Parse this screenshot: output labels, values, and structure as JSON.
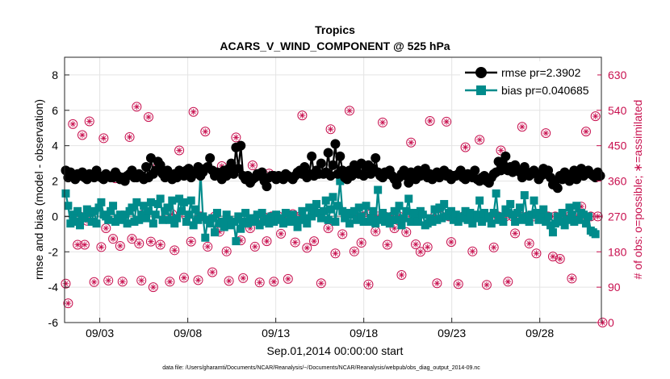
{
  "chart_data": {
    "type": "line",
    "title": "Tropics",
    "subtitle": "ACARS_V_WIND_COMPONENT @ 525 hPa",
    "xlabel": "Sep.01,2014 00:00:00 start",
    "ylabel": "rmse and bias (model - observation)",
    "ylabel_right": "# of obs: o=possible; ∗=assimilated",
    "footnote": "data file: /Users/gharamti/Documents/NCAR/Reanalysis/~/Documents/NCAR/Reanalysis/webpub/obs_diag_output_2014-09.nc",
    "xlim": [
      1,
      31.5
    ],
    "ylim": [
      -6,
      9
    ],
    "ylim_right": [
      0,
      675
    ],
    "x_ticks": [
      3,
      8,
      13,
      18,
      23,
      28
    ],
    "x_tick_labels": [
      "09/03",
      "09/08",
      "09/13",
      "09/18",
      "09/23",
      "09/28"
    ],
    "y_ticks": [
      -6,
      -4,
      -2,
      0,
      2,
      4,
      6,
      8
    ],
    "y_tick_labels": [
      "-6",
      "-4",
      "-2",
      "0",
      "2",
      "4",
      "6",
      "8"
    ],
    "y_ticks_right": [
      0,
      90,
      180,
      270,
      360,
      450,
      540,
      630
    ],
    "y_tick_labels_right": [
      "0",
      "90",
      "180",
      "270",
      "360",
      "450",
      "540",
      "630"
    ],
    "grid": true,
    "legend_position": "top-right",
    "colors": {
      "rmse": "#000000",
      "bias": "#008b8b",
      "obs": "#c8104f",
      "zero_line": "#9a9a9a",
      "grid": "#e4e4e4",
      "axis": "#262626"
    },
    "series": [
      {
        "name": "rmse pr=2.3902",
        "color": "#000000",
        "marker": "circle",
        "values": [
          2.6,
          2.2,
          2.5,
          2.3,
          2.1,
          2.4,
          2.3,
          2.5,
          2.2,
          2.1,
          2.4,
          2.3,
          2.2,
          2.6,
          2.3,
          2.2,
          2.1,
          2.4,
          2.3,
          2.2,
          2.2,
          2.5,
          2.3,
          2.1,
          2.2,
          2.0,
          2.3,
          2.4,
          2.6,
          2.2,
          2.2,
          2.4,
          2.3,
          2.1,
          2.8,
          2.2,
          3.3,
          2.4,
          2.6,
          3.1,
          2.9,
          2.4,
          2.2,
          2.6,
          2.3,
          2.1,
          2.4,
          2.2,
          2.6,
          2.4,
          2.3,
          2.6,
          2.7,
          2.2,
          2.4,
          2.5,
          2.8,
          2.3,
          2.5,
          2.7,
          2.8,
          3.3,
          2.6,
          2.3,
          2.5,
          2.4,
          2.1,
          2.6,
          2.3,
          2.7,
          3.0,
          2.4,
          3.9,
          2.7,
          4.0,
          2.3,
          2.1,
          2.3,
          1.9,
          2.1,
          2.2,
          2.4,
          2.3,
          2.5,
          2.0,
          1.7,
          2.2,
          2.3,
          2.3,
          2.1,
          2.3,
          2.2,
          2.1,
          2.4,
          2.3,
          2.2,
          2.1,
          2.3,
          2.5,
          2.6,
          2.4,
          2.8,
          2.2,
          2.4,
          3.4,
          2.3,
          2.6,
          2.4,
          3.0,
          2.4,
          2.5,
          3.6,
          2.3,
          2.9,
          4.1,
          2.4,
          3.4,
          2.6,
          2.2,
          2.1,
          2.6,
          2.3,
          2.9,
          2.6,
          2.4,
          3.0,
          2.3,
          2.8,
          2.9,
          2.4,
          2.7,
          3.3,
          2.5,
          2.3,
          2.2,
          2.5,
          2.4,
          2.6,
          2.3,
          2.1,
          1.8,
          2.2,
          2.4,
          2.6,
          2.3,
          1.9,
          2.5,
          2.3,
          2.1,
          2.6,
          2.3,
          2.4,
          2.7,
          2.2,
          2.4,
          2.1,
          2.3,
          2.5,
          2.2,
          2.4,
          2.6,
          2.3,
          2.4,
          2.1,
          2.3,
          2.3,
          2.4,
          2.6,
          2.2,
          2.1,
          2.4,
          2.3,
          2.2,
          2.6,
          2.1,
          2.0,
          2.2,
          2.3,
          2.0,
          1.9,
          2.2,
          2.4,
          2.5,
          3.1,
          2.6,
          2.9,
          3.4,
          2.6,
          2.8,
          2.5,
          2.9,
          2.6,
          2.5,
          2.2,
          2.8,
          2.4,
          2.3,
          2.5,
          2.6,
          2.4,
          2.1,
          2.3,
          2.7,
          2.4,
          2.6,
          2.2,
          1.8,
          2.0,
          1.6,
          2.3,
          2.1,
          2.5,
          2.3,
          2.0,
          2.4,
          2.6,
          2.1,
          2.4,
          2.7,
          2.3,
          2.5,
          2.6,
          2.4,
          2.3,
          2.2,
          2.5,
          2.3
        ]
      },
      {
        "name": "bias pr=0.040685",
        "color": "#008b8b",
        "marker": "square",
        "values": [
          1.3,
          0.6,
          -0.4,
          0.1,
          -0.3,
          0.3,
          -0.5,
          0.0,
          -0.1,
          0.4,
          0.2,
          -0.3,
          0.3,
          -0.4,
          0.5,
          0.8,
          0.1,
          0.0,
          -0.2,
          0.3,
          0.6,
          -0.3,
          -0.1,
          0.1,
          -0.2,
          0.1,
          -0.4,
          0.3,
          0.5,
          -0.3,
          0.8,
          -0.2,
          0.1,
          0.6,
          -0.1,
          0.3,
          0.8,
          -0.4,
          0.1,
          0.7,
          1.0,
          -0.2,
          0.3,
          0.5,
          -0.2,
          0.9,
          -0.4,
          -0.1,
          1.0,
          0.3,
          0.8,
          -0.3,
          0.1,
          0.9,
          -0.5,
          0.4,
          -0.2,
          2.5,
          0.0,
          -1.2,
          -0.2,
          -0.4,
          -0.1,
          -0.9,
          0.2,
          -0.4,
          -0.3,
          -0.6,
          0.1,
          -0.2,
          -0.5,
          -0.3,
          -1.4,
          0.0,
          -0.7,
          -0.3,
          0.2,
          -0.4,
          -0.1,
          -0.2,
          -0.3,
          0.1,
          -0.5,
          0.2,
          -0.3,
          -0.1,
          -0.4,
          0.0,
          -0.3,
          0.1,
          -0.2,
          -0.1,
          -0.4,
          0.2,
          -0.3,
          -0.2,
          0.1,
          -0.3,
          -0.6,
          -0.2,
          0.3,
          -0.1,
          -0.4,
          0.5,
          0.0,
          0.3,
          0.7,
          0.2,
          -0.1,
          0.3,
          0.9,
          -0.2,
          0.4,
          1.1,
          -0.3,
          0.6,
          2.0,
          0.3,
          -0.1,
          0.2,
          -0.4,
          0.1,
          0.3,
          -0.2,
          0.5,
          0.0,
          -0.3,
          0.6,
          -0.3,
          -0.1,
          0.3,
          -0.4,
          1.5,
          -0.2,
          0.2,
          -0.3,
          0.0,
          -0.4,
          -0.2,
          0.3,
          -0.2,
          0.6,
          -0.5,
          -0.1,
          0.3,
          1.0,
          -0.3,
          0.2,
          0.0,
          -0.3,
          0.3,
          0.1,
          -0.5,
          -0.4,
          -0.1,
          -0.3,
          0.4,
          -0.2,
          0.5,
          -0.1,
          0.7,
          0.0,
          0.2,
          0.3,
          -0.2,
          0.1,
          -0.3,
          0.0,
          -0.1,
          0.3,
          -0.2,
          0.2,
          -0.4,
          -0.1,
          0.1,
          0.9,
          -0.3,
          0.2,
          -0.1,
          0.0,
          -0.4,
          0.2,
          1.3,
          -0.2,
          0.0,
          -0.3,
          0.4,
          0.2,
          0.7,
          0.1,
          -0.3,
          0.2,
          0.5,
          -0.2,
          1.2,
          0.0,
          -0.3,
          0.1,
          0.9,
          0.2,
          -0.2,
          0.1,
          0.4,
          -0.3,
          0.0,
          -0.5,
          -0.9,
          -0.4,
          0.0,
          -0.3,
          0.2,
          -0.5,
          -0.2,
          0.5,
          0.1,
          -0.3,
          0.6,
          -0.2,
          0.2,
          0.1,
          -0.4,
          0.0,
          -0.8,
          -0.9,
          -1.0
        ]
      },
      {
        "name": "obs possible",
        "color": "#c8104f",
        "marker": "circle-open",
        "values": [
          99,
          49,
          276,
          505,
          276,
          198,
          270,
          477,
          198,
          259,
          512,
          269,
          103,
          276,
          270,
          192,
          469,
          240,
          107,
          276,
          213,
          367,
          270,
          195,
          104,
          270,
          270,
          472,
          213,
          271,
          549,
          201,
          107,
          276,
          275,
          523,
          206,
          90,
          270,
          399,
          198,
          265,
          265,
          284,
          104,
          276,
          184,
          270,
          438,
          275,
          114,
          270,
          270,
          206,
          536,
          270,
          108,
          270,
          277,
          486,
          193,
          269,
          128,
          270,
          270,
          231,
          398,
          270,
          181,
          106,
          276,
          270,
          471,
          274,
          209,
          113,
          275,
          276,
          240,
          400,
          193,
          270,
          102,
          276,
          268,
          207,
          379,
          270,
          104,
          276,
          270,
          226,
          270,
          270,
          111,
          270,
          276,
          204,
          270,
          270,
          527,
          276,
          190,
          270,
          270,
          207,
          270,
          270,
          100,
          276,
          270,
          240,
          492,
          270,
          176,
          270,
          270,
          225,
          270,
          270,
          539,
          270,
          181,
          270,
          270,
          203,
          270,
          270,
          97,
          276,
          270,
          232,
          270,
          270,
          509,
          270,
          198,
          270,
          270,
          240,
          270,
          270,
          121,
          270,
          230,
          270,
          458,
          270,
          199,
          270,
          180,
          270,
          270,
          192,
          513,
          270,
          270,
          100,
          270,
          270,
          270,
          511,
          270,
          205,
          270,
          270,
          98,
          270,
          270,
          446,
          270,
          270,
          181,
          270,
          270,
          465,
          270,
          270,
          96,
          270,
          270,
          191,
          270,
          270,
          438,
          270,
          270,
          104,
          270,
          270,
          227,
          270,
          270,
          498,
          270,
          270,
          201,
          270,
          270,
          176,
          270,
          270,
          271,
          482,
          270,
          270,
          168,
          270,
          270,
          162,
          270,
          270,
          270,
          270,
          112,
          270,
          270,
          270,
          295,
          270,
          486,
          270,
          270,
          270,
          525,
          270,
          270,
          0
        ]
      },
      {
        "name": "obs assimilated",
        "color": "#c8104f",
        "marker": "asterisk",
        "values": [
          99,
          49,
          276,
          505,
          276,
          198,
          270,
          477,
          198,
          259,
          512,
          269,
          103,
          276,
          270,
          192,
          469,
          240,
          107,
          276,
          213,
          367,
          270,
          195,
          104,
          270,
          270,
          472,
          213,
          271,
          549,
          201,
          107,
          276,
          275,
          523,
          206,
          90,
          270,
          399,
          198,
          265,
          265,
          284,
          104,
          276,
          184,
          270,
          438,
          275,
          114,
          270,
          270,
          206,
          536,
          270,
          108,
          270,
          277,
          486,
          193,
          269,
          128,
          270,
          270,
          231,
          398,
          270,
          181,
          106,
          276,
          270,
          471,
          274,
          209,
          113,
          275,
          276,
          240,
          400,
          193,
          270,
          102,
          276,
          268,
          207,
          379,
          270,
          104,
          276,
          270,
          226,
          270,
          270,
          111,
          270,
          276,
          204,
          270,
          270,
          527,
          276,
          190,
          270,
          270,
          207,
          270,
          270,
          100,
          276,
          270,
          240,
          492,
          270,
          176,
          270,
          270,
          225,
          270,
          270,
          539,
          270,
          181,
          270,
          270,
          203,
          270,
          270,
          97,
          276,
          270,
          232,
          270,
          270,
          509,
          270,
          198,
          270,
          270,
          240,
          270,
          270,
          121,
          270,
          230,
          270,
          458,
          270,
          199,
          270,
          180,
          270,
          270,
          192,
          513,
          270,
          270,
          100,
          270,
          270,
          270,
          511,
          270,
          205,
          270,
          270,
          98,
          270,
          270,
          446,
          270,
          270,
          181,
          270,
          270,
          465,
          270,
          270,
          96,
          270,
          270,
          191,
          270,
          270,
          438,
          270,
          270,
          104,
          270,
          270,
          227,
          270,
          270,
          498,
          270,
          270,
          201,
          270,
          270,
          176,
          270,
          270,
          271,
          482,
          270,
          270,
          168,
          270,
          270,
          162,
          270,
          270,
          270,
          270,
          112,
          270,
          270,
          270,
          295,
          270,
          486,
          270,
          270,
          270,
          525,
          270,
          270,
          0
        ]
      }
    ]
  }
}
